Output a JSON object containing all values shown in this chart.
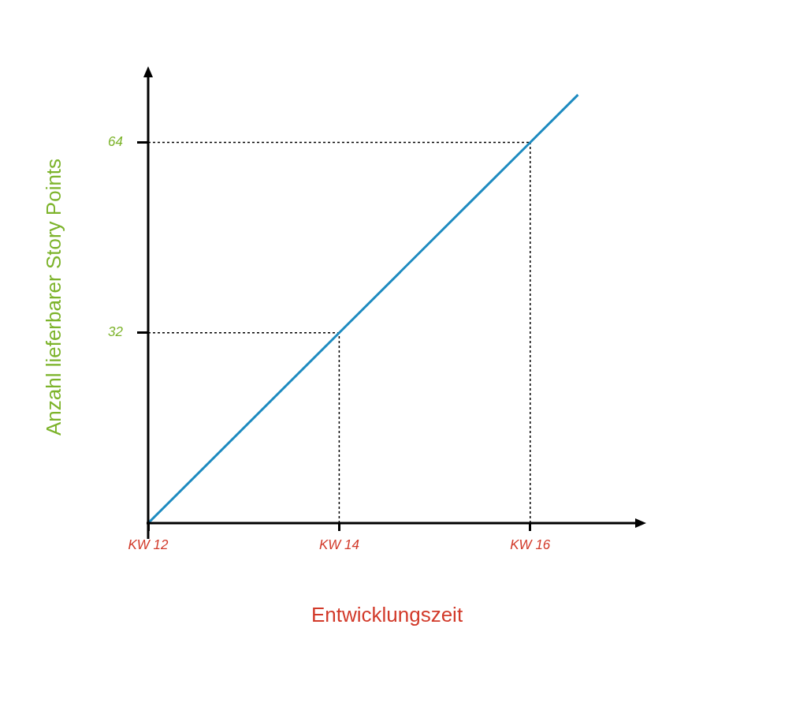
{
  "chart_data": {
    "type": "line",
    "xlabel": "Entwicklungszeit",
    "ylabel": "Anzahl lieferbarer Story Points",
    "categories": [
      "KW 12",
      null,
      null,
      null,
      "KW 14",
      null,
      null,
      null,
      "KW 16",
      null,
      null
    ],
    "series": [
      {
        "color": "#1e8bc0",
        "values": [
          0,
          null,
          null,
          null,
          32,
          null,
          null,
          null,
          64,
          72,
          null
        ]
      }
    ],
    "ylim": [
      0,
      76
    ],
    "yticks": [
      32,
      64
    ],
    "ref_lines": [
      {
        "axis": "y",
        "value": 32,
        "line_style": "dotted"
      },
      {
        "axis": "y",
        "value": 64,
        "line_style": "dotted"
      },
      {
        "axis": "x",
        "value": "KW 14",
        "line_style": "dotted"
      },
      {
        "axis": "x",
        "value": "KW 16",
        "line_style": "dotted"
      }
    ],
    "grid": false,
    "legend": false,
    "marker": "none",
    "line_style": "solid"
  }
}
